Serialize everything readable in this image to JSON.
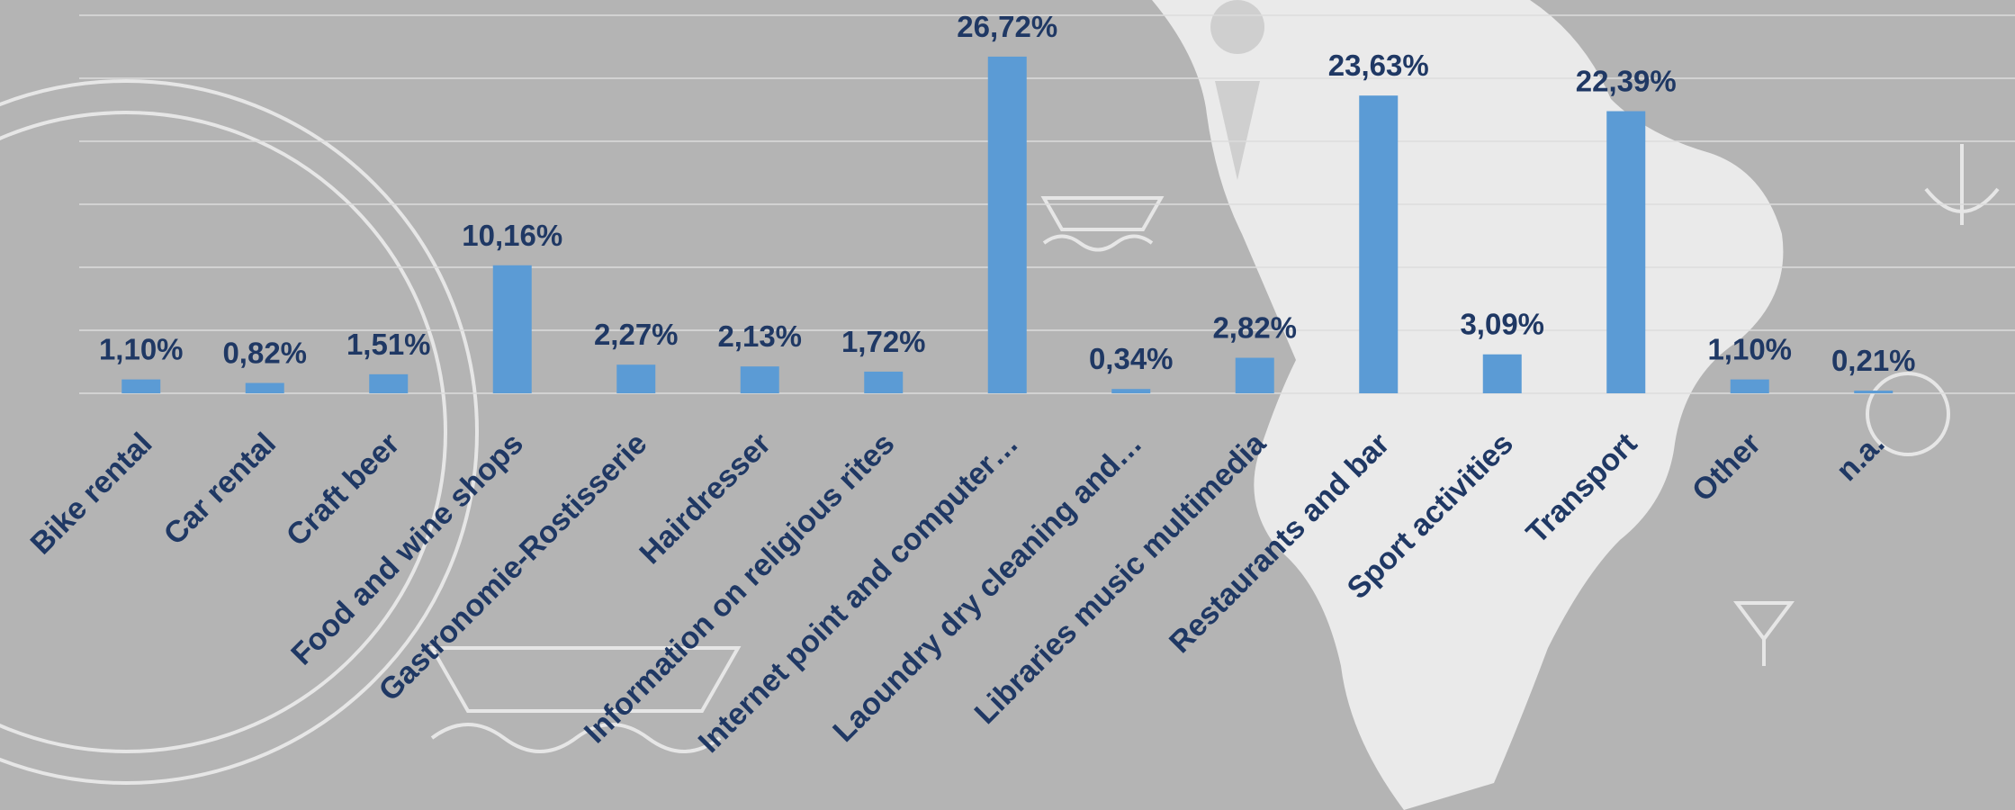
{
  "chart_data": {
    "type": "bar",
    "categories": [
      "Bike rental",
      "Car rental",
      "Craft beer",
      "Food and wine shops",
      "Gastronomie-Rostisserie",
      "Hairdresser",
      "Information on religious rites",
      "Internet point and computer…",
      "Laoundry dry cleaning and…",
      "Libraries music multimedia",
      "Restaurants and bar",
      "Sport activities",
      "Transport",
      "Other",
      "n.a."
    ],
    "values": [
      1.1,
      0.82,
      1.51,
      10.16,
      2.27,
      2.13,
      1.72,
      26.72,
      0.34,
      2.82,
      23.63,
      3.09,
      22.39,
      1.1,
      0.21
    ],
    "value_labels": [
      "1,10%",
      "0,82%",
      "1,51%",
      "10,16%",
      "2,27%",
      "2,13%",
      "1,72%",
      "26,72%",
      "0,34%",
      "2,82%",
      "23,63%",
      "3,09%",
      "22,39%",
      "1,10%",
      "0,21%"
    ],
    "color": "#5b9bd5",
    "ylim": [
      0,
      30
    ],
    "yticks": [
      0,
      5,
      10,
      15,
      20,
      25,
      30
    ],
    "grid": true
  }
}
